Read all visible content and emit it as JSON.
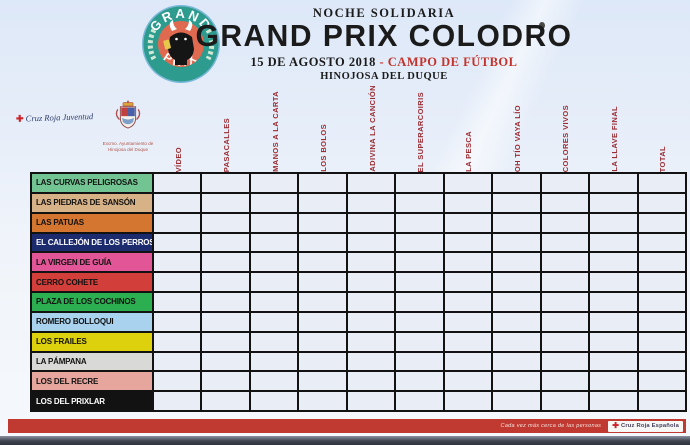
{
  "event": {
    "tagline": "NOCHE SOLIDARIA",
    "title": "GRAND PRIX COLODRO",
    "date": "15 DE AGOSTO 2018",
    "separator": "-",
    "venue": "CAMPO DE FÚTBOL",
    "location": "HINOJOSA DEL DUQUE"
  },
  "logo": {
    "arc_top": "GRAND",
    "arc_bottom": "PRIX"
  },
  "sponsors": {
    "youth_red_cross": "Cruz Roja Juventud",
    "council_line1": "Excmo. Ayuntamiento de",
    "council_line2": "Hinojosa del Duque"
  },
  "scoreboard": {
    "columns": [
      "VÍDEO",
      "PASACALLES",
      "MANOS A LA CARTA",
      "LOS BOLOS",
      "ADIVINA LA CANCIÓN",
      "EL SUPERARCOIRIS",
      "LA PESCA",
      "OH TÍO VAYA LÍO",
      "COLORES VIVOS",
      "LA LLAVE FINAL",
      "TOTAL"
    ],
    "teams": [
      {
        "name": "LAS CURVAS PELIGROSAS",
        "color": "#72c593",
        "text_color": "#111111"
      },
      {
        "name": "LAS PIEDRAS DE SANSÓN",
        "color": "#d7b287",
        "text_color": "#111111"
      },
      {
        "name": "LAS PATUAS",
        "color": "#d4762f",
        "text_color": "#111111"
      },
      {
        "name": "EL CALLEJÓN DE LOS PERROS",
        "color": "#1c2b6e",
        "text_color": "#ffffff"
      },
      {
        "name": "LA VIRGEN DE GUÍA",
        "color": "#e25698",
        "text_color": "#111111"
      },
      {
        "name": "CERRO COHETE",
        "color": "#d23f3b",
        "text_color": "#111111"
      },
      {
        "name": "PLAZA DE LOS COCHINOS",
        "color": "#2caf50",
        "text_color": "#111111"
      },
      {
        "name": "ROMERO BOLLOQUI",
        "color": "#a8d2ee",
        "text_color": "#111111"
      },
      {
        "name": "LOS FRAILES",
        "color": "#ddd10e",
        "text_color": "#111111"
      },
      {
        "name": "LA PÁMPANA",
        "color": "#d9d9d7",
        "text_color": "#111111"
      },
      {
        "name": "LOS DEL RECRE",
        "color": "#e6a69e",
        "text_color": "#111111"
      },
      {
        "name": "LOS DEL PRIXLAR",
        "color": "#121212",
        "text_color": "#ffffff"
      }
    ],
    "cell_value": ""
  },
  "footer": {
    "slogan": "Cada vez más cerca de las personas",
    "brand": "Cruz Roja Española"
  },
  "colors": {
    "header_label": "#9c2d33",
    "accent_red": "#c2332b",
    "strip_red": "#c03a31",
    "grid_line": "#121212",
    "cell_bg": "#e9eef6",
    "logo_ring": "#2e9b8f",
    "logo_center": "#e06a4f"
  }
}
